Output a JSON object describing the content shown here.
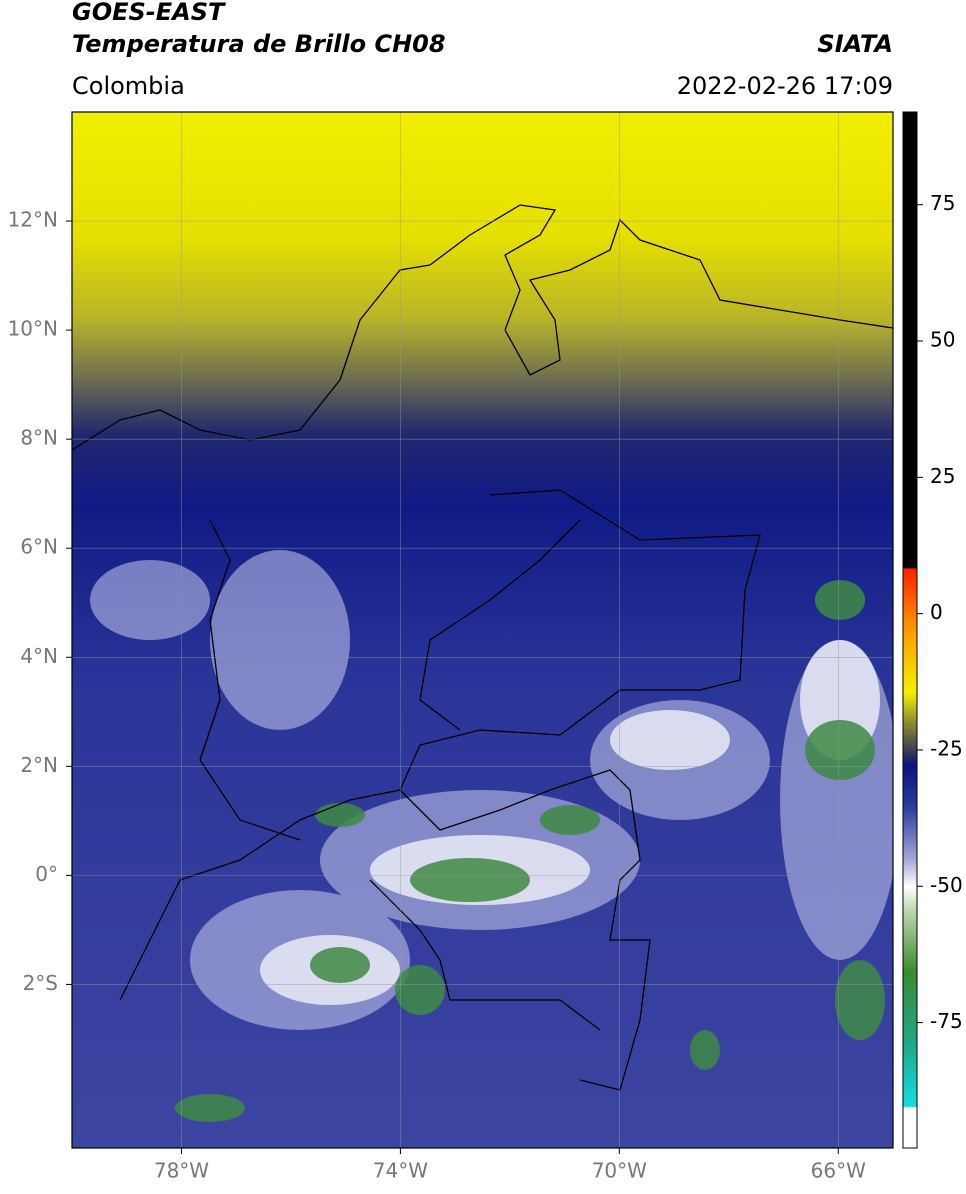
{
  "header": {
    "title_line1": "GOES-EAST",
    "title_line2": "Temperatura de Brillo CH08",
    "source": "SIATA",
    "region": "Colombia",
    "datetime": "2022-02-26 17:09"
  },
  "map": {
    "xlim": [
      -80,
      -65
    ],
    "ylim": [
      -5,
      14
    ],
    "xticks": [
      {
        "value": -78,
        "label": "78°W"
      },
      {
        "value": -74,
        "label": "74°W"
      },
      {
        "value": -70,
        "label": "70°W"
      },
      {
        "value": -66,
        "label": "66°W"
      }
    ],
    "yticks": [
      {
        "value": -2,
        "label": "2°S"
      },
      {
        "value": 0,
        "label": "0°"
      },
      {
        "value": 2,
        "label": "2°N"
      },
      {
        "value": 4,
        "label": "4°N"
      },
      {
        "value": 6,
        "label": "6°N"
      },
      {
        "value": 8,
        "label": "8°N"
      },
      {
        "value": 10,
        "label": "10°N"
      },
      {
        "value": 12,
        "label": "12°N"
      }
    ],
    "grid": true
  },
  "colorbar": {
    "lim": [
      -98,
      92
    ],
    "ticks": [
      -75,
      -50,
      -25,
      0,
      25,
      50,
      75
    ]
  }
}
